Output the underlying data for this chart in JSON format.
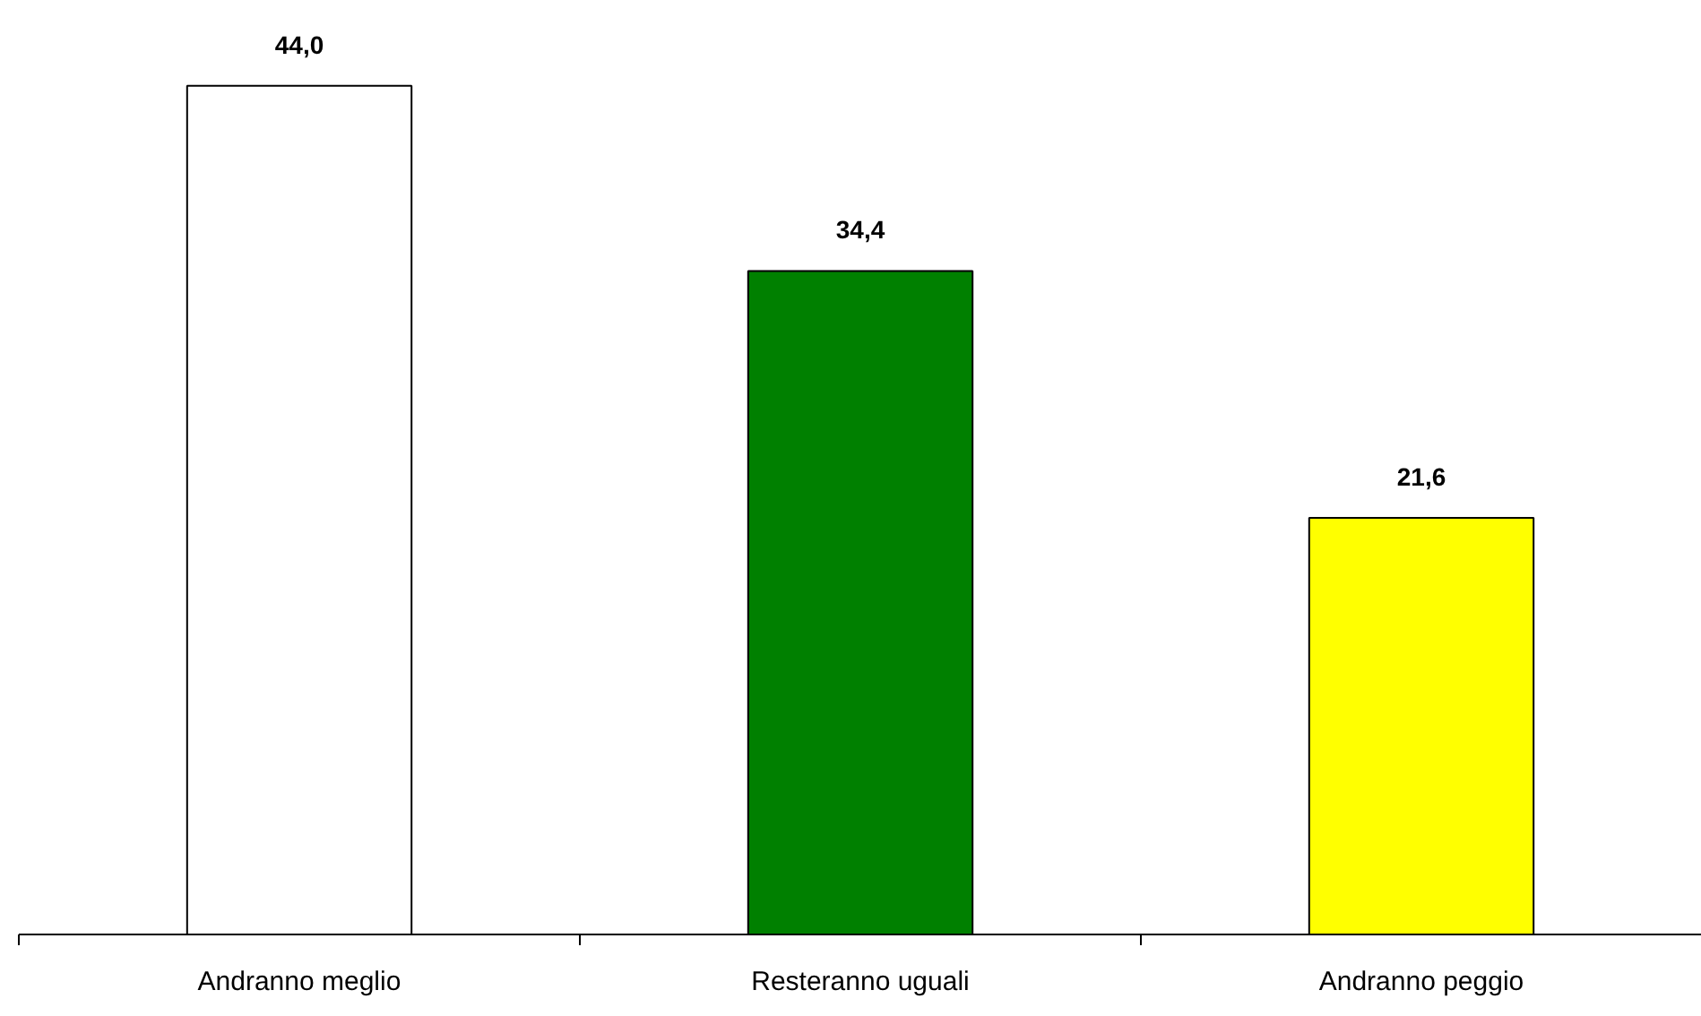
{
  "chart_data": {
    "type": "bar",
    "categories": [
      "Andranno meglio",
      "Resteranno uguali",
      "Andranno peggio"
    ],
    "values": [
      44.0,
      34.4,
      21.6
    ],
    "colors": [
      "#ffffff",
      "#008000",
      "#ffff00"
    ],
    "value_labels": [
      "44,0",
      "34,4",
      "21,6"
    ],
    "grid": false
  }
}
